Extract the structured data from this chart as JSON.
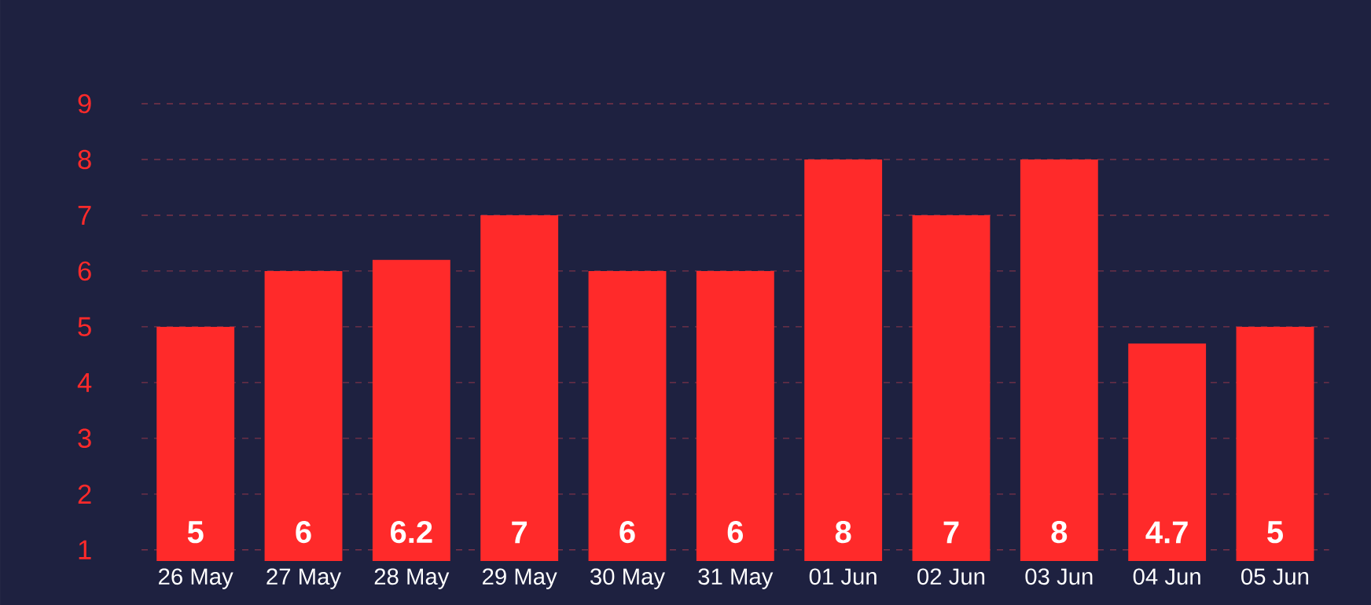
{
  "chart_data": {
    "type": "bar",
    "categories": [
      "26 May",
      "27 May",
      "28 May",
      "29 May",
      "30 May",
      "31 May",
      "01 Jun",
      "02 Jun",
      "03 Jun",
      "04 Jun",
      "05 Jun"
    ],
    "values": [
      5,
      6,
      6.2,
      7,
      6,
      6,
      8,
      7,
      8,
      4.7,
      5
    ],
    "color": "#ff2a2a",
    "ylim": [
      0.8,
      9
    ],
    "yticks": [
      1,
      2,
      3,
      4,
      5,
      6,
      7,
      8,
      9
    ],
    "grid": "y",
    "data_labels": true
  }
}
